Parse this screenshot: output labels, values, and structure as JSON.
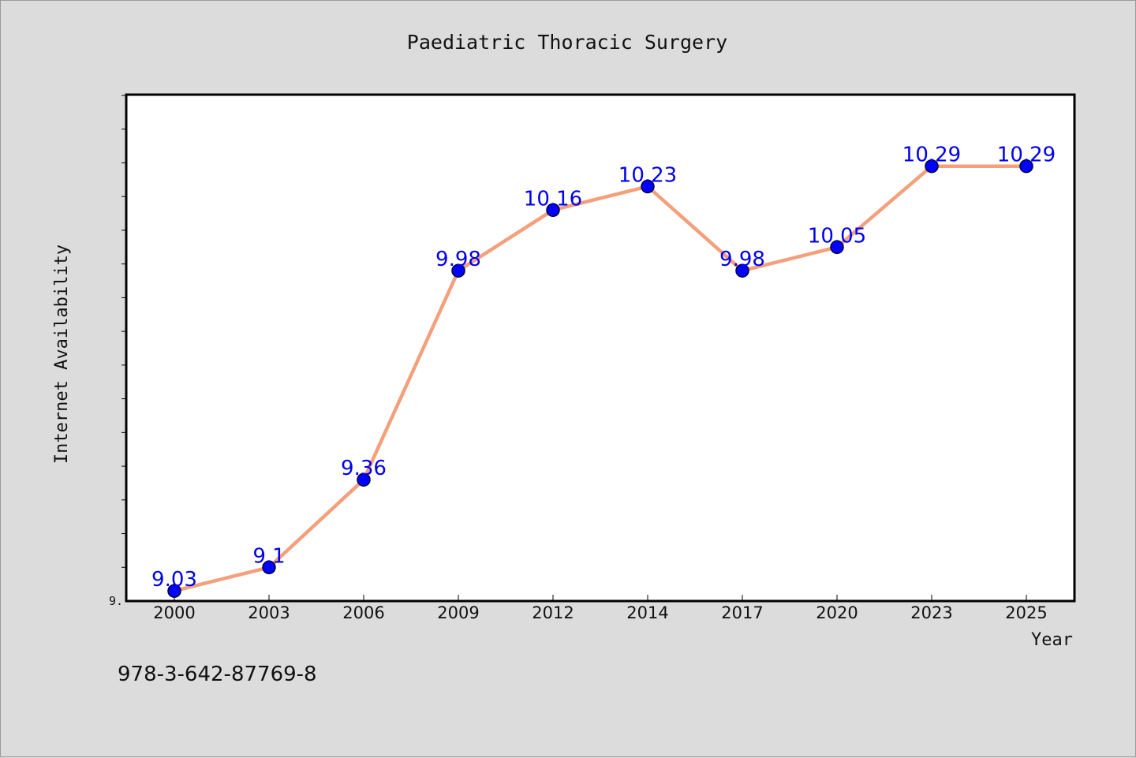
{
  "footer": {
    "isbn": "978-3-642-87769-8"
  },
  "colors": {
    "background": "#dcdcdc",
    "plot_background": "#ffffff",
    "line": "#f4a07c",
    "marker": "#0000ff",
    "data_label": "#0000ee"
  },
  "chart_data": {
    "type": "line",
    "title": "Paediatric Thoracic Surgery",
    "xlabel": "Year",
    "ylabel": "Internet Availability",
    "y_axis_first_tick_label": "9.",
    "ylim": [
      9.0,
      10.5
    ],
    "y_minor_tick_step": 0.1,
    "grid": false,
    "legend": "none",
    "categories": [
      "2000",
      "2003",
      "2006",
      "2009",
      "2012",
      "2014",
      "2017",
      "2020",
      "2023",
      "2025"
    ],
    "series": [
      {
        "values": [
          9.03,
          9.1,
          9.36,
          9.98,
          10.16,
          10.23,
          9.98,
          10.05,
          10.29,
          10.29
        ],
        "data_labels": [
          "9.03",
          "9.1",
          "9.36",
          "9.98",
          "10.16",
          "10.23",
          "9.98",
          "10.05",
          "10.29",
          "10.29"
        ]
      }
    ]
  }
}
